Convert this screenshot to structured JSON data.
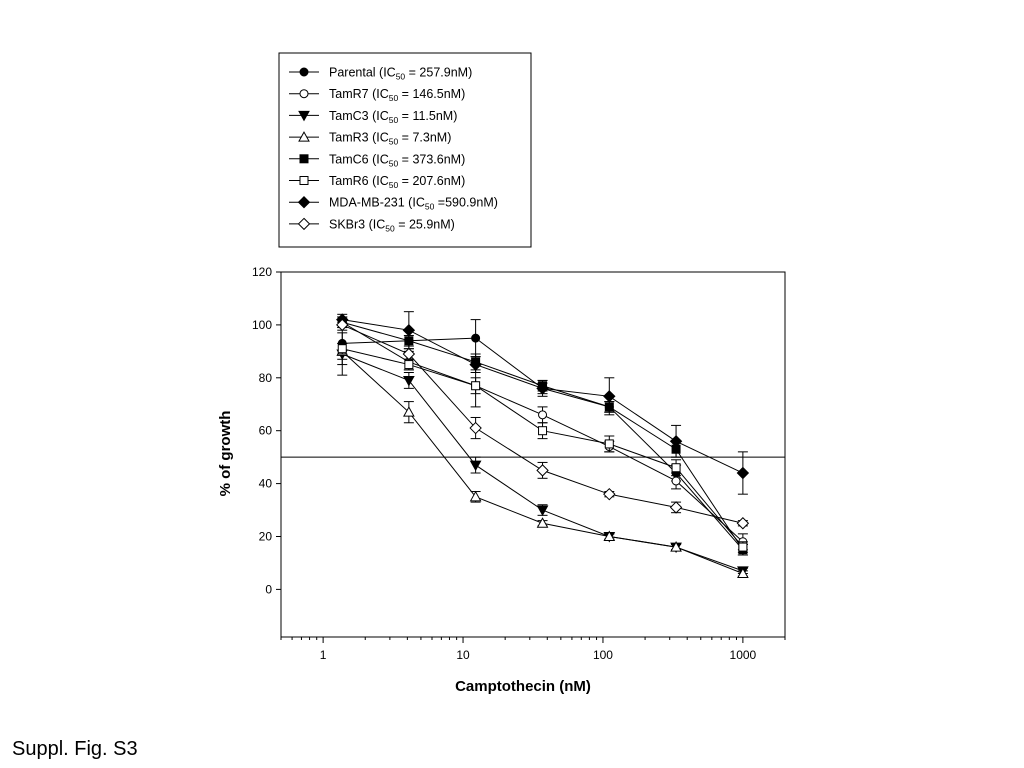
{
  "caption": "Suppl. Fig. S3",
  "chart_data": {
    "type": "line",
    "xscale": "log",
    "xlabel": "Camptothecin (nM)",
    "ylabel": "% of growth",
    "xlim": [
      0.5,
      2000
    ],
    "ylim": [
      -18,
      120
    ],
    "xticks": [
      1,
      10,
      100,
      1000
    ],
    "yticks": [
      0,
      20,
      40,
      60,
      80,
      100,
      120
    ],
    "reference_line_y": 50,
    "legend_position": "top, above plot",
    "x": [
      1.37,
      4.1,
      12.3,
      37,
      111,
      333,
      1000
    ],
    "series": [
      {
        "name": "Parental",
        "ic50": "257.9nM",
        "marker": "circle",
        "filled": true,
        "values": [
          93,
          94,
          95,
          76,
          69,
          44,
          15
        ],
        "errors": [
          8,
          4,
          7,
          2,
          2,
          3,
          2
        ]
      },
      {
        "name": "TamR7",
        "ic50": "146.5nM",
        "marker": "circle",
        "filled": false,
        "values": [
          101,
          86,
          77,
          66,
          54,
          41,
          18
        ],
        "errors": [
          2,
          3,
          3,
          3,
          2,
          3,
          3
        ]
      },
      {
        "name": "TamC3",
        "ic50": "11.5nM",
        "marker": "triangle-down",
        "filled": true,
        "values": [
          89,
          79,
          47,
          30,
          20,
          16,
          7
        ],
        "errors": [
          8,
          3,
          3,
          2,
          1,
          1,
          1
        ]
      },
      {
        "name": "TamR3",
        "ic50": "7.3nM",
        "marker": "triangle-up",
        "filled": false,
        "values": [
          90,
          67,
          35,
          25,
          20,
          16,
          6
        ],
        "errors": [
          3,
          4,
          2,
          1,
          1,
          1,
          1
        ]
      },
      {
        "name": "TamC6",
        "ic50": "373.6nM",
        "marker": "square",
        "filled": true,
        "values": [
          101,
          94,
          86,
          77,
          69,
          53,
          15
        ],
        "errors": [
          2,
          2,
          3,
          2,
          2,
          3,
          2
        ]
      },
      {
        "name": "TamR6",
        "ic50": "207.6nM",
        "marker": "square",
        "filled": false,
        "values": [
          91,
          85,
          77,
          60,
          55,
          46,
          16
        ],
        "errors": [
          2,
          2,
          8,
          3,
          3,
          3,
          2
        ]
      },
      {
        "name": "MDA-MB-231",
        "ic50": "590.9nM",
        "marker": "diamond",
        "filled": true,
        "values": [
          102,
          98,
          85,
          76,
          73,
          56,
          44
        ],
        "errors": [
          2,
          7,
          3,
          3,
          7,
          6,
          8
        ]
      },
      {
        "name": "SKBr3",
        "ic50": "25.9nM",
        "marker": "diamond",
        "filled": false,
        "values": [
          100,
          89,
          61,
          45,
          36,
          31,
          25
        ],
        "errors": [
          2,
          2,
          4,
          3,
          1,
          2,
          1
        ]
      }
    ],
    "legend": [
      {
        "name": "Parental",
        "prefix": " (IC",
        "sub": "50",
        "suffix": " = 257.9nM)"
      },
      {
        "name": "TamR7",
        "prefix": " (IC",
        "sub": "50",
        "suffix": " = 146.5nM)"
      },
      {
        "name": "TamC3",
        "prefix": " (IC",
        "sub": "50",
        "suffix": " = 11.5nM)"
      },
      {
        "name": "TamR3",
        "prefix": " (IC",
        "sub": "50",
        "suffix": " = 7.3nM)"
      },
      {
        "name": "TamC6",
        "prefix": " (IC",
        "sub": "50",
        "suffix": " = 373.6nM)"
      },
      {
        "name": "TamR6",
        "prefix": " (IC",
        "sub": "50",
        "suffix": " = 207.6nM)"
      },
      {
        "name": "MDA-MB-231",
        "prefix": " (IC",
        "sub": "50",
        "suffix": " =590.9nM)"
      },
      {
        "name": "SKBr3",
        "prefix": " (IC",
        "sub": "50",
        "suffix": " = 25.9nM)"
      }
    ]
  }
}
